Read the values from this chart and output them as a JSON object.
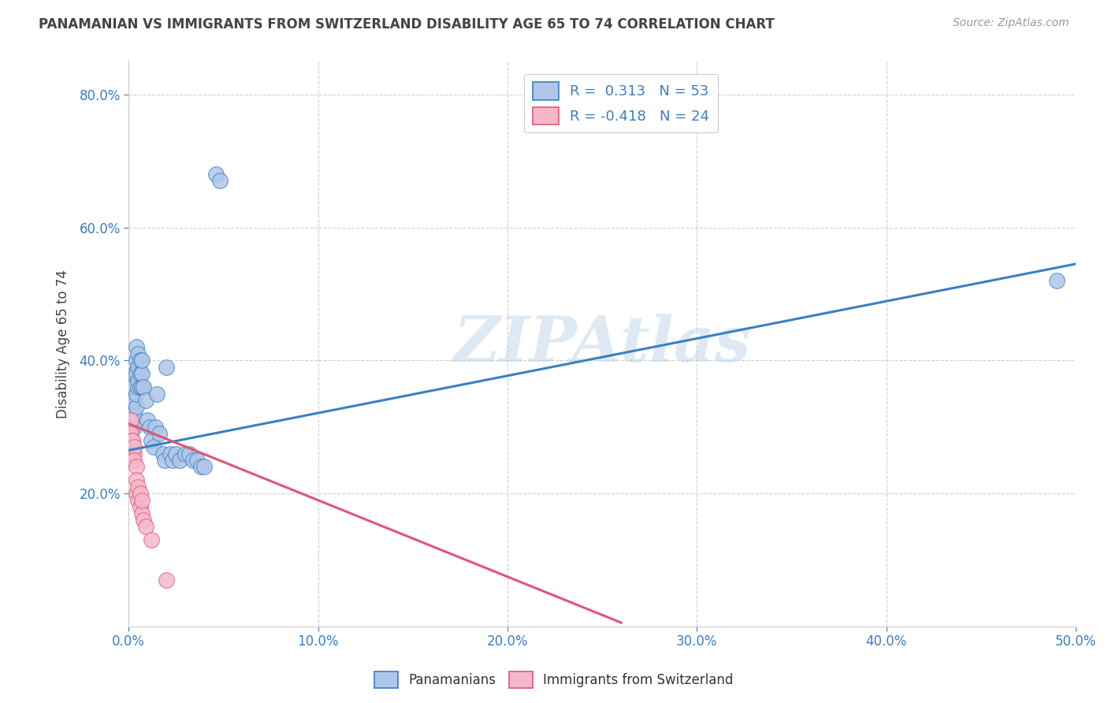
{
  "title": "PANAMANIAN VS IMMIGRANTS FROM SWITZERLAND DISABILITY AGE 65 TO 74 CORRELATION CHART",
  "source": "Source: ZipAtlas.com",
  "ylabel": "Disability Age 65 to 74",
  "xlim": [
    0.0,
    0.5
  ],
  "ylim": [
    0.0,
    0.85
  ],
  "xtick_vals": [
    0.0,
    0.1,
    0.2,
    0.3,
    0.4,
    0.5
  ],
  "ytick_vals": [
    0.2,
    0.4,
    0.6,
    0.8
  ],
  "blue_scatter_x": [
    0.001,
    0.001,
    0.001,
    0.001,
    0.002,
    0.002,
    0.002,
    0.002,
    0.003,
    0.003,
    0.003,
    0.003,
    0.003,
    0.004,
    0.004,
    0.004,
    0.004,
    0.004,
    0.005,
    0.005,
    0.005,
    0.005,
    0.006,
    0.006,
    0.006,
    0.007,
    0.007,
    0.007,
    0.008,
    0.009,
    0.01,
    0.011,
    0.012,
    0.013,
    0.014,
    0.015,
    0.016,
    0.018,
    0.019,
    0.02,
    0.022,
    0.023,
    0.025,
    0.027,
    0.03,
    0.032,
    0.034,
    0.036,
    0.038,
    0.04,
    0.046,
    0.048,
    0.49
  ],
  "blue_scatter_y": [
    0.27,
    0.28,
    0.3,
    0.31,
    0.27,
    0.3,
    0.32,
    0.34,
    0.3,
    0.32,
    0.34,
    0.36,
    0.38,
    0.33,
    0.35,
    0.38,
    0.4,
    0.42,
    0.36,
    0.37,
    0.39,
    0.41,
    0.36,
    0.38,
    0.4,
    0.36,
    0.38,
    0.4,
    0.36,
    0.34,
    0.31,
    0.3,
    0.28,
    0.27,
    0.3,
    0.35,
    0.29,
    0.26,
    0.25,
    0.39,
    0.26,
    0.25,
    0.26,
    0.25,
    0.26,
    0.26,
    0.25,
    0.25,
    0.24,
    0.24,
    0.68,
    0.67,
    0.52
  ],
  "pink_scatter_x": [
    0.001,
    0.001,
    0.001,
    0.001,
    0.002,
    0.002,
    0.002,
    0.002,
    0.003,
    0.003,
    0.003,
    0.004,
    0.004,
    0.004,
    0.005,
    0.005,
    0.006,
    0.006,
    0.007,
    0.007,
    0.008,
    0.009,
    0.012,
    0.02
  ],
  "pink_scatter_y": [
    0.29,
    0.31,
    0.27,
    0.29,
    0.26,
    0.28,
    0.26,
    0.28,
    0.26,
    0.27,
    0.25,
    0.24,
    0.22,
    0.2,
    0.19,
    0.21,
    0.18,
    0.2,
    0.17,
    0.19,
    0.16,
    0.15,
    0.13,
    0.07
  ],
  "blue_color": "#aec6e8",
  "pink_color": "#f5b8cb",
  "blue_line_color": "#3a7fc1",
  "pink_line_color": "#e05577",
  "blue_line_intercept": 0.265,
  "blue_line_slope": 0.56,
  "pink_line_intercept": 0.305,
  "pink_line_slope": -1.15,
  "pink_line_xend": 0.26,
  "watermark_text": "ZIPAtlas",
  "legend_label_blue": "R =  0.313   N = 53",
  "legend_label_pink": "R = -0.418   N = 24",
  "legend_color_blue": "#3a7fc1",
  "bg_color": "#ffffff",
  "grid_color": "#d0d0d0"
}
